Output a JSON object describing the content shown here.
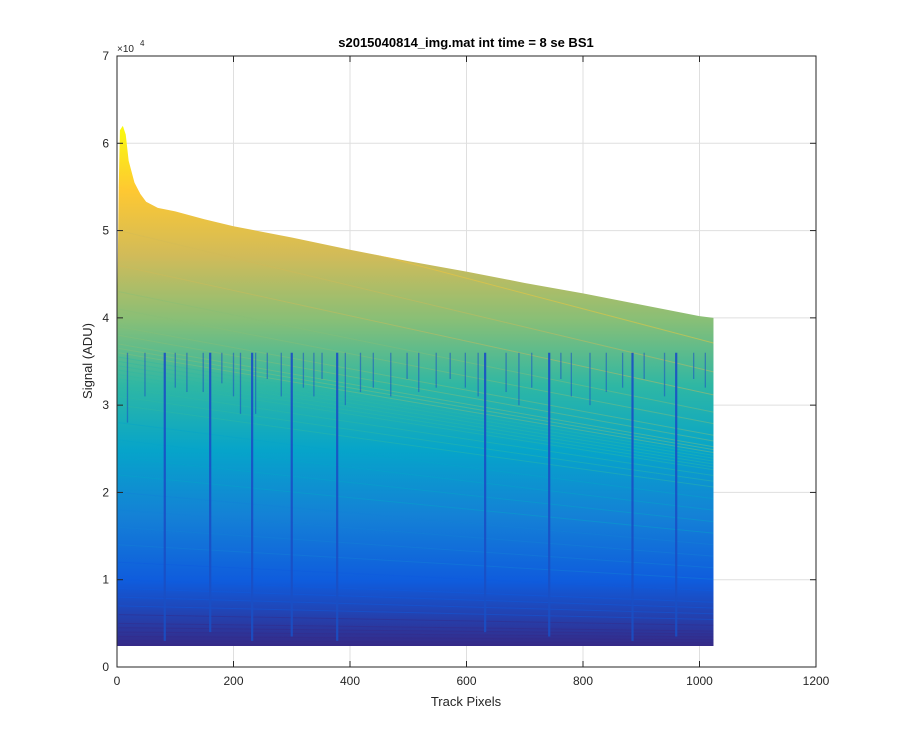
{
  "chart_data": {
    "type": "area",
    "title": "s2015040814_img.mat int time = 8 se   BS1",
    "xlabel": "Track Pixels",
    "ylabel": "Signal (ADU)",
    "y_exponent_label": "×10",
    "y_exponent_power": "4",
    "xlim": [
      0,
      1200
    ],
    "ylim": [
      0,
      70000
    ],
    "x_ticks": [
      0,
      200,
      400,
      600,
      800,
      1000,
      1200
    ],
    "x_tick_labels": [
      "0",
      "200",
      "400",
      "600",
      "800",
      "1000",
      "1200"
    ],
    "y_ticks": [
      0,
      10000,
      20000,
      30000,
      40000,
      50000,
      60000,
      70000
    ],
    "y_tick_labels": [
      "0",
      "1",
      "2",
      "3",
      "4",
      "5",
      "6",
      "7"
    ],
    "grid": true,
    "colormap": [
      "#352a87",
      "#0f5cdd",
      "#1481d6",
      "#06a4ca",
      "#2eb7a4",
      "#87bf77",
      "#d1bb59",
      "#fec832",
      "#f9fb0e"
    ],
    "upper_envelope": {
      "x": [
        0,
        3,
        5,
        10,
        15,
        20,
        30,
        40,
        50,
        70,
        100,
        150,
        200,
        300,
        400,
        500,
        600,
        700,
        800,
        900,
        1000,
        1024
      ],
      "y": [
        39000,
        55000,
        61500,
        62000,
        61000,
        58000,
        55500,
        54200,
        53300,
        52600,
        52200,
        51300,
        50500,
        49200,
        47800,
        46500,
        45300,
        44000,
        42800,
        41500,
        40200,
        40000
      ]
    },
    "lower_envelope": {
      "x": [
        0,
        1024
      ],
      "y": [
        2400,
        2400
      ]
    },
    "line_count": 40,
    "line_top_levels": [
      62000,
      55000,
      50000,
      46000,
      43000,
      41000,
      39000,
      38000,
      37000,
      36500,
      36000,
      35500,
      35000,
      34500,
      34000,
      33500,
      33000,
      32000,
      31000,
      30000,
      28000,
      26000,
      24000,
      22000,
      20000,
      18000,
      16000,
      14000,
      12000,
      10000,
      9000,
      8000,
      7000,
      6000,
      5000,
      4500,
      4000,
      3500,
      3000,
      2600
    ],
    "dips": {
      "x": [
        18,
        48,
        82,
        100,
        120,
        148,
        160,
        180,
        200,
        212,
        232,
        238,
        258,
        282,
        300,
        320,
        338,
        352,
        378,
        392,
        418,
        440,
        470,
        498,
        518,
        548,
        572,
        598,
        620,
        632,
        668,
        690,
        712,
        742,
        762,
        780,
        812,
        840,
        868,
        885,
        905,
        940,
        960,
        990,
        1010
      ],
      "y": [
        28000,
        31000,
        3000,
        32000,
        31500,
        31500,
        4000,
        32500,
        31000,
        29000,
        3000,
        29000,
        33000,
        31000,
        3500,
        32000,
        31000,
        33000,
        3000,
        30000,
        31500,
        32000,
        31000,
        33000,
        31500,
        32000,
        33000,
        32000,
        31000,
        4000,
        31500,
        30000,
        32000,
        3500,
        33000,
        31000,
        30000,
        31500,
        32000,
        3000,
        33000,
        31000,
        3500,
        33000,
        32000
      ]
    }
  }
}
